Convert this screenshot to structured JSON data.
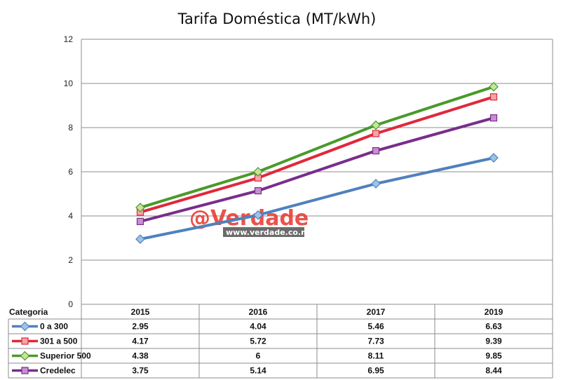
{
  "chart_data": {
    "type": "line",
    "title": "Tarifa Doméstica (MT/kWh)",
    "xlabel": "",
    "ylabel": "",
    "ylim": [
      0,
      12
    ],
    "yticks": [
      0,
      2,
      4,
      6,
      8,
      10,
      12
    ],
    "grid": true,
    "legend": "table-below",
    "table_header": "Categoria",
    "categories": [
      "2015",
      "2016",
      "2017",
      "2019"
    ],
    "series": [
      {
        "name": "0 a 300",
        "values": [
          2.95,
          4.04,
          5.46,
          6.63
        ],
        "color": "#4f81bd",
        "marker": "diamond",
        "marker_fill": "#9dc3e6"
      },
      {
        "name": "301 a 500",
        "values": [
          4.17,
          5.72,
          7.73,
          9.39
        ],
        "color": "#e0283c",
        "marker": "square",
        "marker_fill": "#f4a6a6"
      },
      {
        "name": "Superior 500",
        "values": [
          4.38,
          6,
          8.11,
          9.85
        ],
        "color": "#4a9a2a",
        "marker": "diamond",
        "marker_fill": "#c6e59a"
      },
      {
        "name": "Credelec",
        "values": [
          3.75,
          5.14,
          6.95,
          8.44
        ],
        "color": "#7a2d8c",
        "marker": "square",
        "marker_fill": "#c78fd1"
      }
    ],
    "table_values": [
      [
        "2.95",
        "4.04",
        "5.46",
        "6.63"
      ],
      [
        "4.17",
        "5.72",
        "7.73",
        "9.39"
      ],
      [
        "4.38",
        "6",
        "8.11",
        "9.85"
      ],
      [
        "3.75",
        "5.14",
        "6.95",
        "8.44"
      ]
    ]
  },
  "watermark": {
    "brand": "@Verdade",
    "url": "www.verdade.co.mz"
  }
}
